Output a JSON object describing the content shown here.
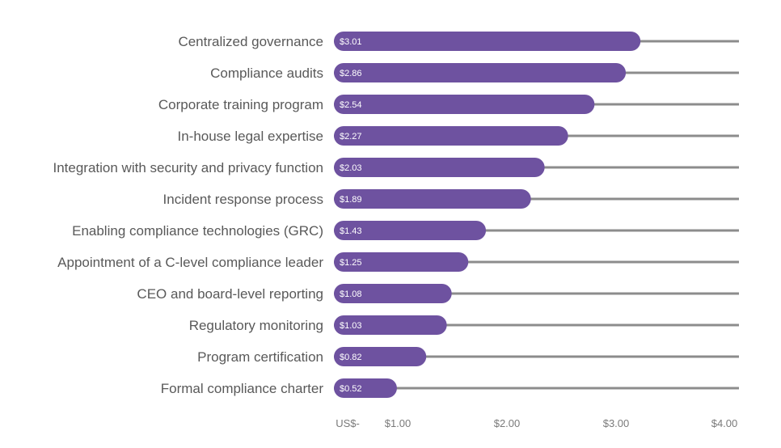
{
  "colors": {
    "bar": "#6e52a0",
    "track": "#8c8c8c",
    "category_text": "#595959",
    "tick_text": "#7a7a7a"
  },
  "chart_data": {
    "type": "bar",
    "orientation": "horizontal",
    "categories": [
      "Centralized governance",
      "Compliance audits",
      "Corporate training program",
      "In-house legal expertise",
      "Integration with security and privacy function",
      "Incident response process",
      "Enabling compliance technologies (GRC)",
      "Appointment of a C-level compliance leader",
      "CEO and board-level reporting",
      "Regulatory monitoring",
      "Program certification",
      "Formal compliance charter"
    ],
    "values": [
      3.01,
      2.86,
      2.54,
      2.27,
      2.03,
      1.89,
      1.43,
      1.25,
      1.08,
      1.03,
      0.82,
      0.52
    ],
    "data_labels": [
      "$3.01",
      "$2.86",
      "$2.54",
      "$2.27",
      "$2.03",
      "$1.89",
      "$1.43",
      "$1.25",
      "$1.08",
      "$1.03",
      "$0.82",
      "$0.52"
    ],
    "x_ticks": [
      0,
      1,
      2,
      3,
      4
    ],
    "x_tick_labels": [
      "US$-",
      "$1.00",
      "$2.00",
      "$3.00",
      "$4.00"
    ],
    "xlim": [
      0,
      4
    ],
    "grid": false,
    "legend": "none"
  }
}
